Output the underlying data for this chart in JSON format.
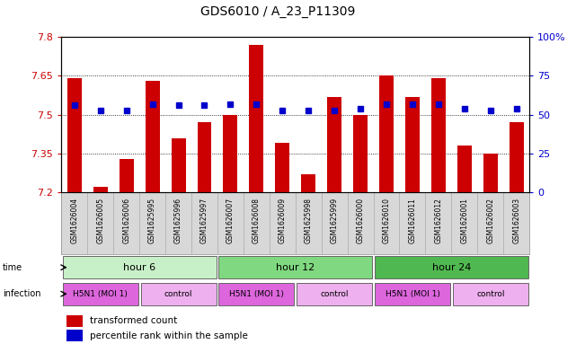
{
  "title": "GDS6010 / A_23_P11309",
  "samples": [
    "GSM1626004",
    "GSM1626005",
    "GSM1626006",
    "GSM1625995",
    "GSM1625996",
    "GSM1625997",
    "GSM1626007",
    "GSM1626008",
    "GSM1626009",
    "GSM1625998",
    "GSM1625999",
    "GSM1626000",
    "GSM1626010",
    "GSM1626011",
    "GSM1626012",
    "GSM1626001",
    "GSM1626002",
    "GSM1626003"
  ],
  "red_values": [
    7.64,
    7.22,
    7.33,
    7.63,
    7.41,
    7.47,
    7.5,
    7.77,
    7.39,
    7.27,
    7.57,
    7.5,
    7.65,
    7.57,
    7.64,
    7.38,
    7.35,
    7.47
  ],
  "blue_values": [
    56,
    53,
    53,
    57,
    56,
    56,
    57,
    57,
    53,
    53,
    53,
    54,
    57,
    57,
    57,
    54,
    53,
    54
  ],
  "y_min": 7.2,
  "y_max": 7.8,
  "y_ticks": [
    7.2,
    7.35,
    7.5,
    7.65,
    7.8
  ],
  "y_tick_labels": [
    "7.2",
    "7.35",
    "7.5",
    "7.65",
    "7.8"
  ],
  "right_y_ticks": [
    0,
    25,
    50,
    75,
    100
  ],
  "right_y_tick_labels": [
    "0",
    "25",
    "50",
    "75",
    "100%"
  ],
  "bar_color": "#cc0000",
  "dot_color": "#0000cc",
  "time_labels": [
    "hour 6",
    "hour 12",
    "hour 24"
  ],
  "time_boundaries": [
    0,
    6,
    12,
    18
  ],
  "time_colors": [
    "#c8f0c8",
    "#80d880",
    "#50b850"
  ],
  "infection_labels": [
    "H5N1 (MOI 1)",
    "control",
    "H5N1 (MOI 1)",
    "control",
    "H5N1 (MOI 1)",
    "control"
  ],
  "infection_boundaries": [
    0,
    3,
    6,
    9,
    12,
    15,
    18
  ],
  "infection_colors": [
    "#dd66dd",
    "#eeb0ee",
    "#dd66dd",
    "#eeb0ee",
    "#dd66dd",
    "#eeb0ee"
  ],
  "label_color_red": "#cc0000",
  "label_color_blue": "#0000cc",
  "sample_label_bg": "#d8d8d8"
}
